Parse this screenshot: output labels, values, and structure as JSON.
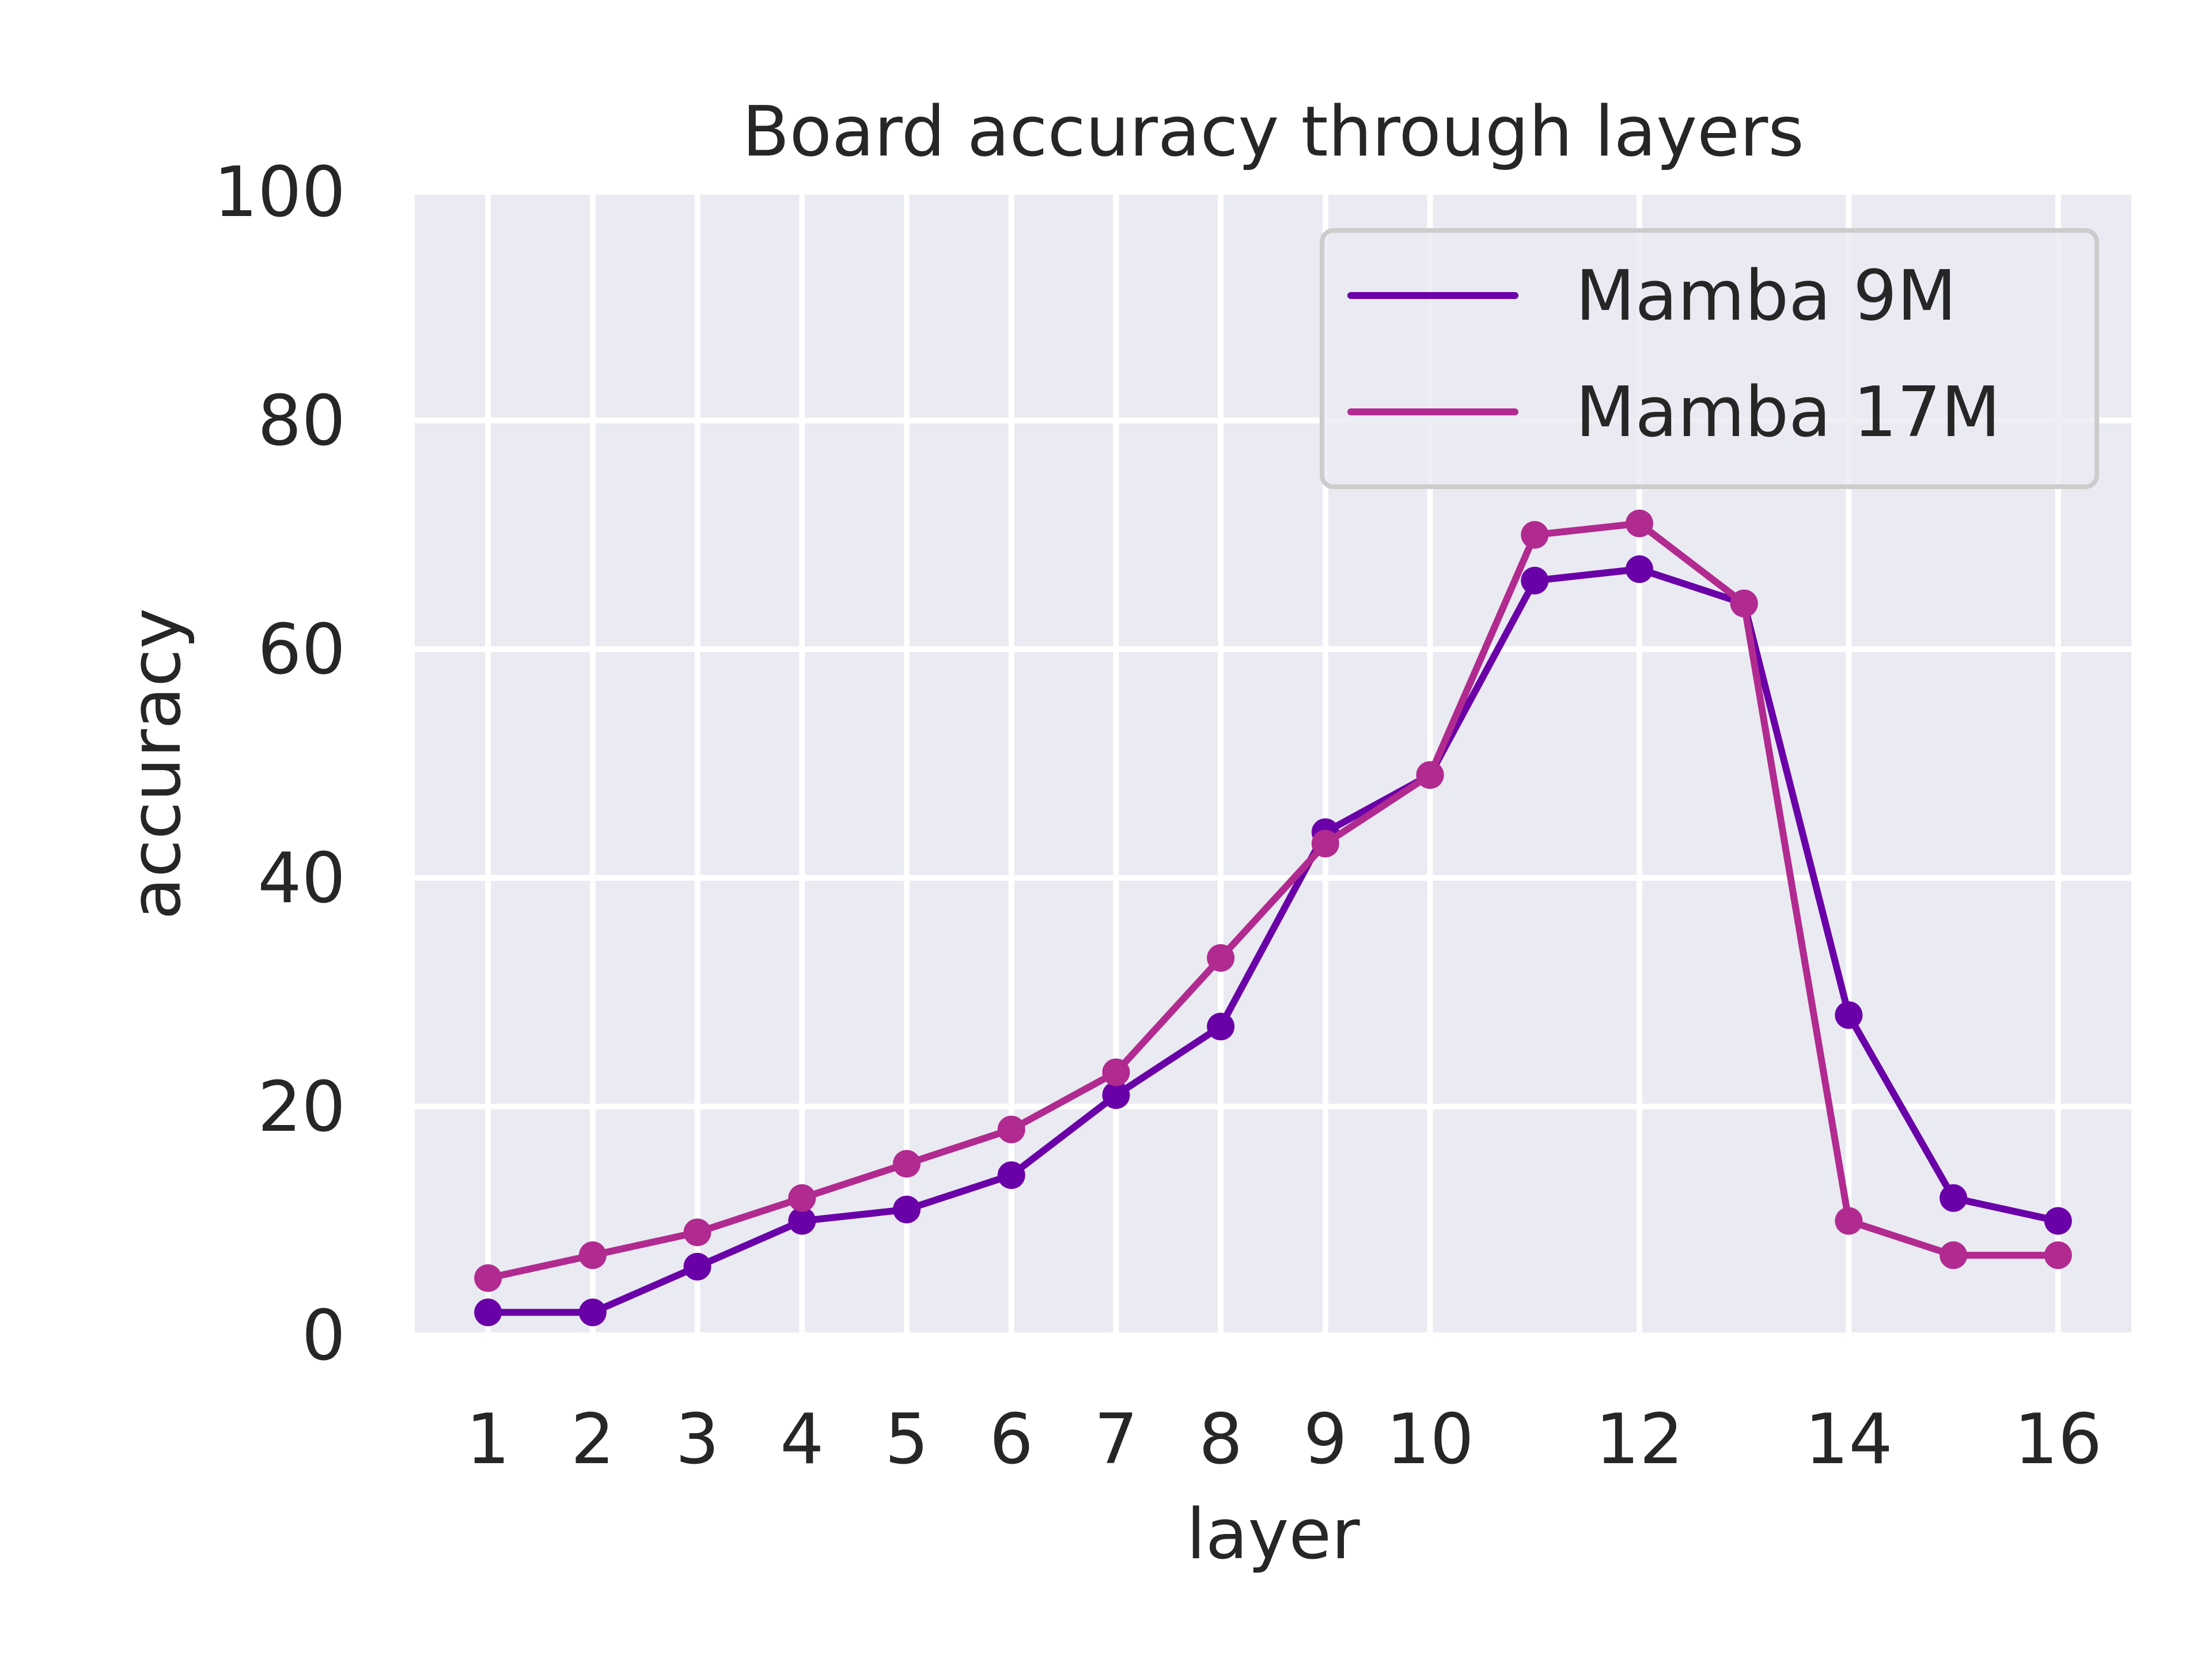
{
  "chart_data": {
    "type": "line",
    "title": "Board accuracy through layers",
    "xlabel": "layer",
    "ylabel": "accuracy",
    "x": [
      1,
      2,
      3,
      4,
      5,
      6,
      7,
      8,
      9,
      10,
      11,
      12,
      13,
      14,
      15,
      16
    ],
    "xticks": [
      1,
      2,
      3,
      4,
      5,
      6,
      7,
      8,
      9,
      10,
      12,
      14,
      16
    ],
    "yticks": [
      0,
      20,
      40,
      60,
      80,
      100
    ],
    "xlim": [
      0.3,
      16.7
    ],
    "ylim": [
      0,
      100
    ],
    "grid": true,
    "legend_position": "top-right",
    "series": [
      {
        "name": "Mamba 9M",
        "color": "#6a00a8",
        "values": [
          2,
          2,
          6,
          10,
          11,
          14,
          21,
          27,
          44,
          49,
          66,
          67,
          64,
          28,
          12,
          10
        ]
      },
      {
        "name": "Mamba 17M",
        "color": "#b12a90",
        "values": [
          5,
          7,
          9,
          12,
          15,
          18,
          23,
          33,
          43,
          49,
          70,
          71,
          64,
          10,
          7,
          7
        ]
      }
    ]
  }
}
